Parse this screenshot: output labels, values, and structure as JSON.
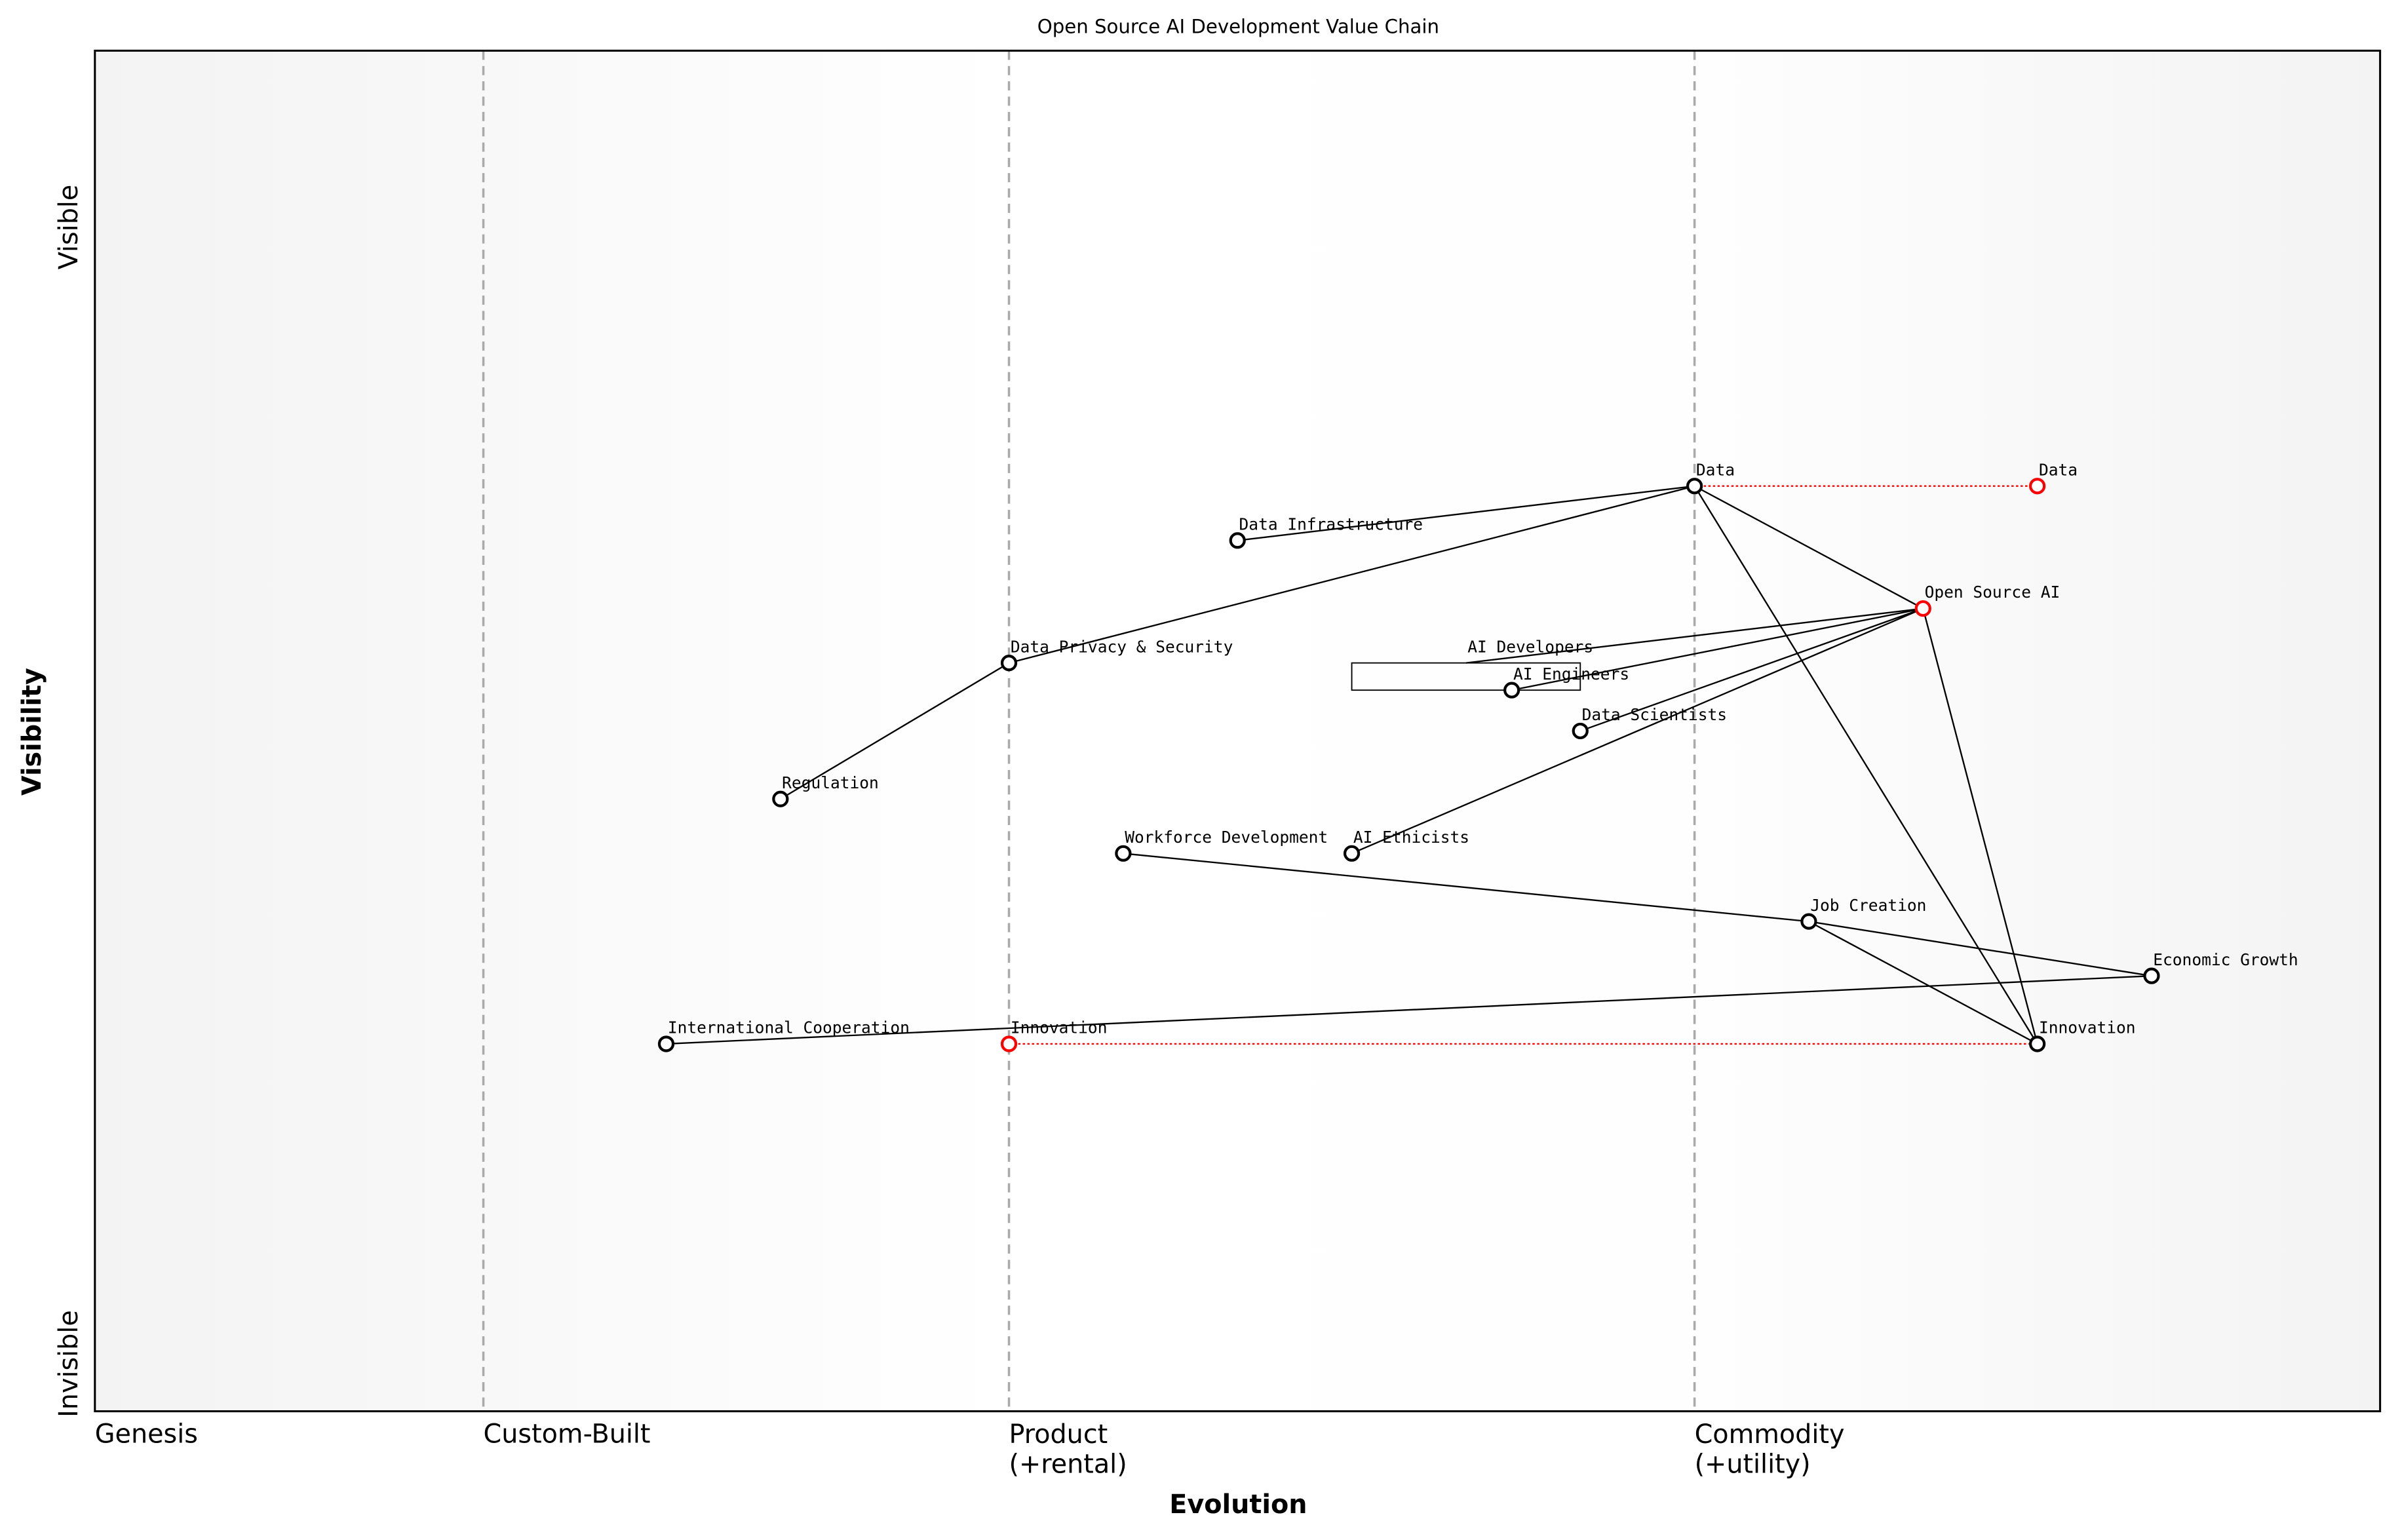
{
  "chart_data": {
    "type": "wardley",
    "title": "Open Source AI Development Value Chain",
    "x_label": "Evolution",
    "y_label": "Visibility",
    "y_top_label": "Visible",
    "y_bottom_label": "Invisible",
    "xlim": [
      0,
      1
    ],
    "ylim": [
      0,
      1
    ],
    "stages": [
      {
        "value": 0,
        "label": "Genesis"
      },
      {
        "value": 0.17,
        "label": "Custom-Built"
      },
      {
        "value": 0.4,
        "label": "Product\n(+rental)"
      },
      {
        "value": 0.7,
        "label": "Commodity\n(+utility)"
      }
    ],
    "nodes": [
      {
        "name": "Data",
        "x": 0.7,
        "y": 0.68,
        "color": "black"
      },
      {
        "name": "Data",
        "x": 0.85,
        "y": 0.68,
        "color": "red"
      },
      {
        "name": "Data Infrastructure",
        "x": 0.5,
        "y": 0.64,
        "color": "black"
      },
      {
        "name": "Open Source AI",
        "x": 0.8,
        "y": 0.59,
        "color": "red"
      },
      {
        "name": "Data Privacy & Security",
        "x": 0.4,
        "y": 0.55,
        "color": "black"
      },
      {
        "name": "AI Developers",
        "x": 0.6,
        "y": 0.55,
        "color": "none"
      },
      {
        "name": "AI Engineers",
        "x": 0.62,
        "y": 0.53,
        "color": "black"
      },
      {
        "name": "Data Scientists",
        "x": 0.65,
        "y": 0.5,
        "color": "black"
      },
      {
        "name": "Regulation",
        "x": 0.3,
        "y": 0.45,
        "color": "black"
      },
      {
        "name": "Workforce Development",
        "x": 0.45,
        "y": 0.41,
        "color": "black"
      },
      {
        "name": "AI Ethicists",
        "x": 0.55,
        "y": 0.41,
        "color": "black"
      },
      {
        "name": "Job Creation",
        "x": 0.75,
        "y": 0.36,
        "color": "black"
      },
      {
        "name": "Economic Growth",
        "x": 0.9,
        "y": 0.32,
        "color": "black"
      },
      {
        "name": "International Cooperation",
        "x": 0.25,
        "y": 0.27,
        "color": "black"
      },
      {
        "name": "Innovation",
        "x": 0.4,
        "y": 0.27,
        "color": "red"
      },
      {
        "name": "Innovation",
        "x": 0.85,
        "y": 0.27,
        "color": "black"
      }
    ],
    "links": [
      [
        0,
        2
      ],
      [
        0,
        4
      ],
      [
        0,
        3
      ],
      [
        0,
        15
      ],
      [
        3,
        5
      ],
      [
        3,
        6
      ],
      [
        3,
        7
      ],
      [
        3,
        10
      ],
      [
        3,
        15
      ],
      [
        4,
        8
      ],
      [
        9,
        11
      ],
      [
        11,
        12
      ],
      [
        11,
        15
      ],
      [
        13,
        12
      ]
    ],
    "evolutions": [
      [
        0,
        1
      ],
      [
        14,
        15
      ]
    ]
  }
}
